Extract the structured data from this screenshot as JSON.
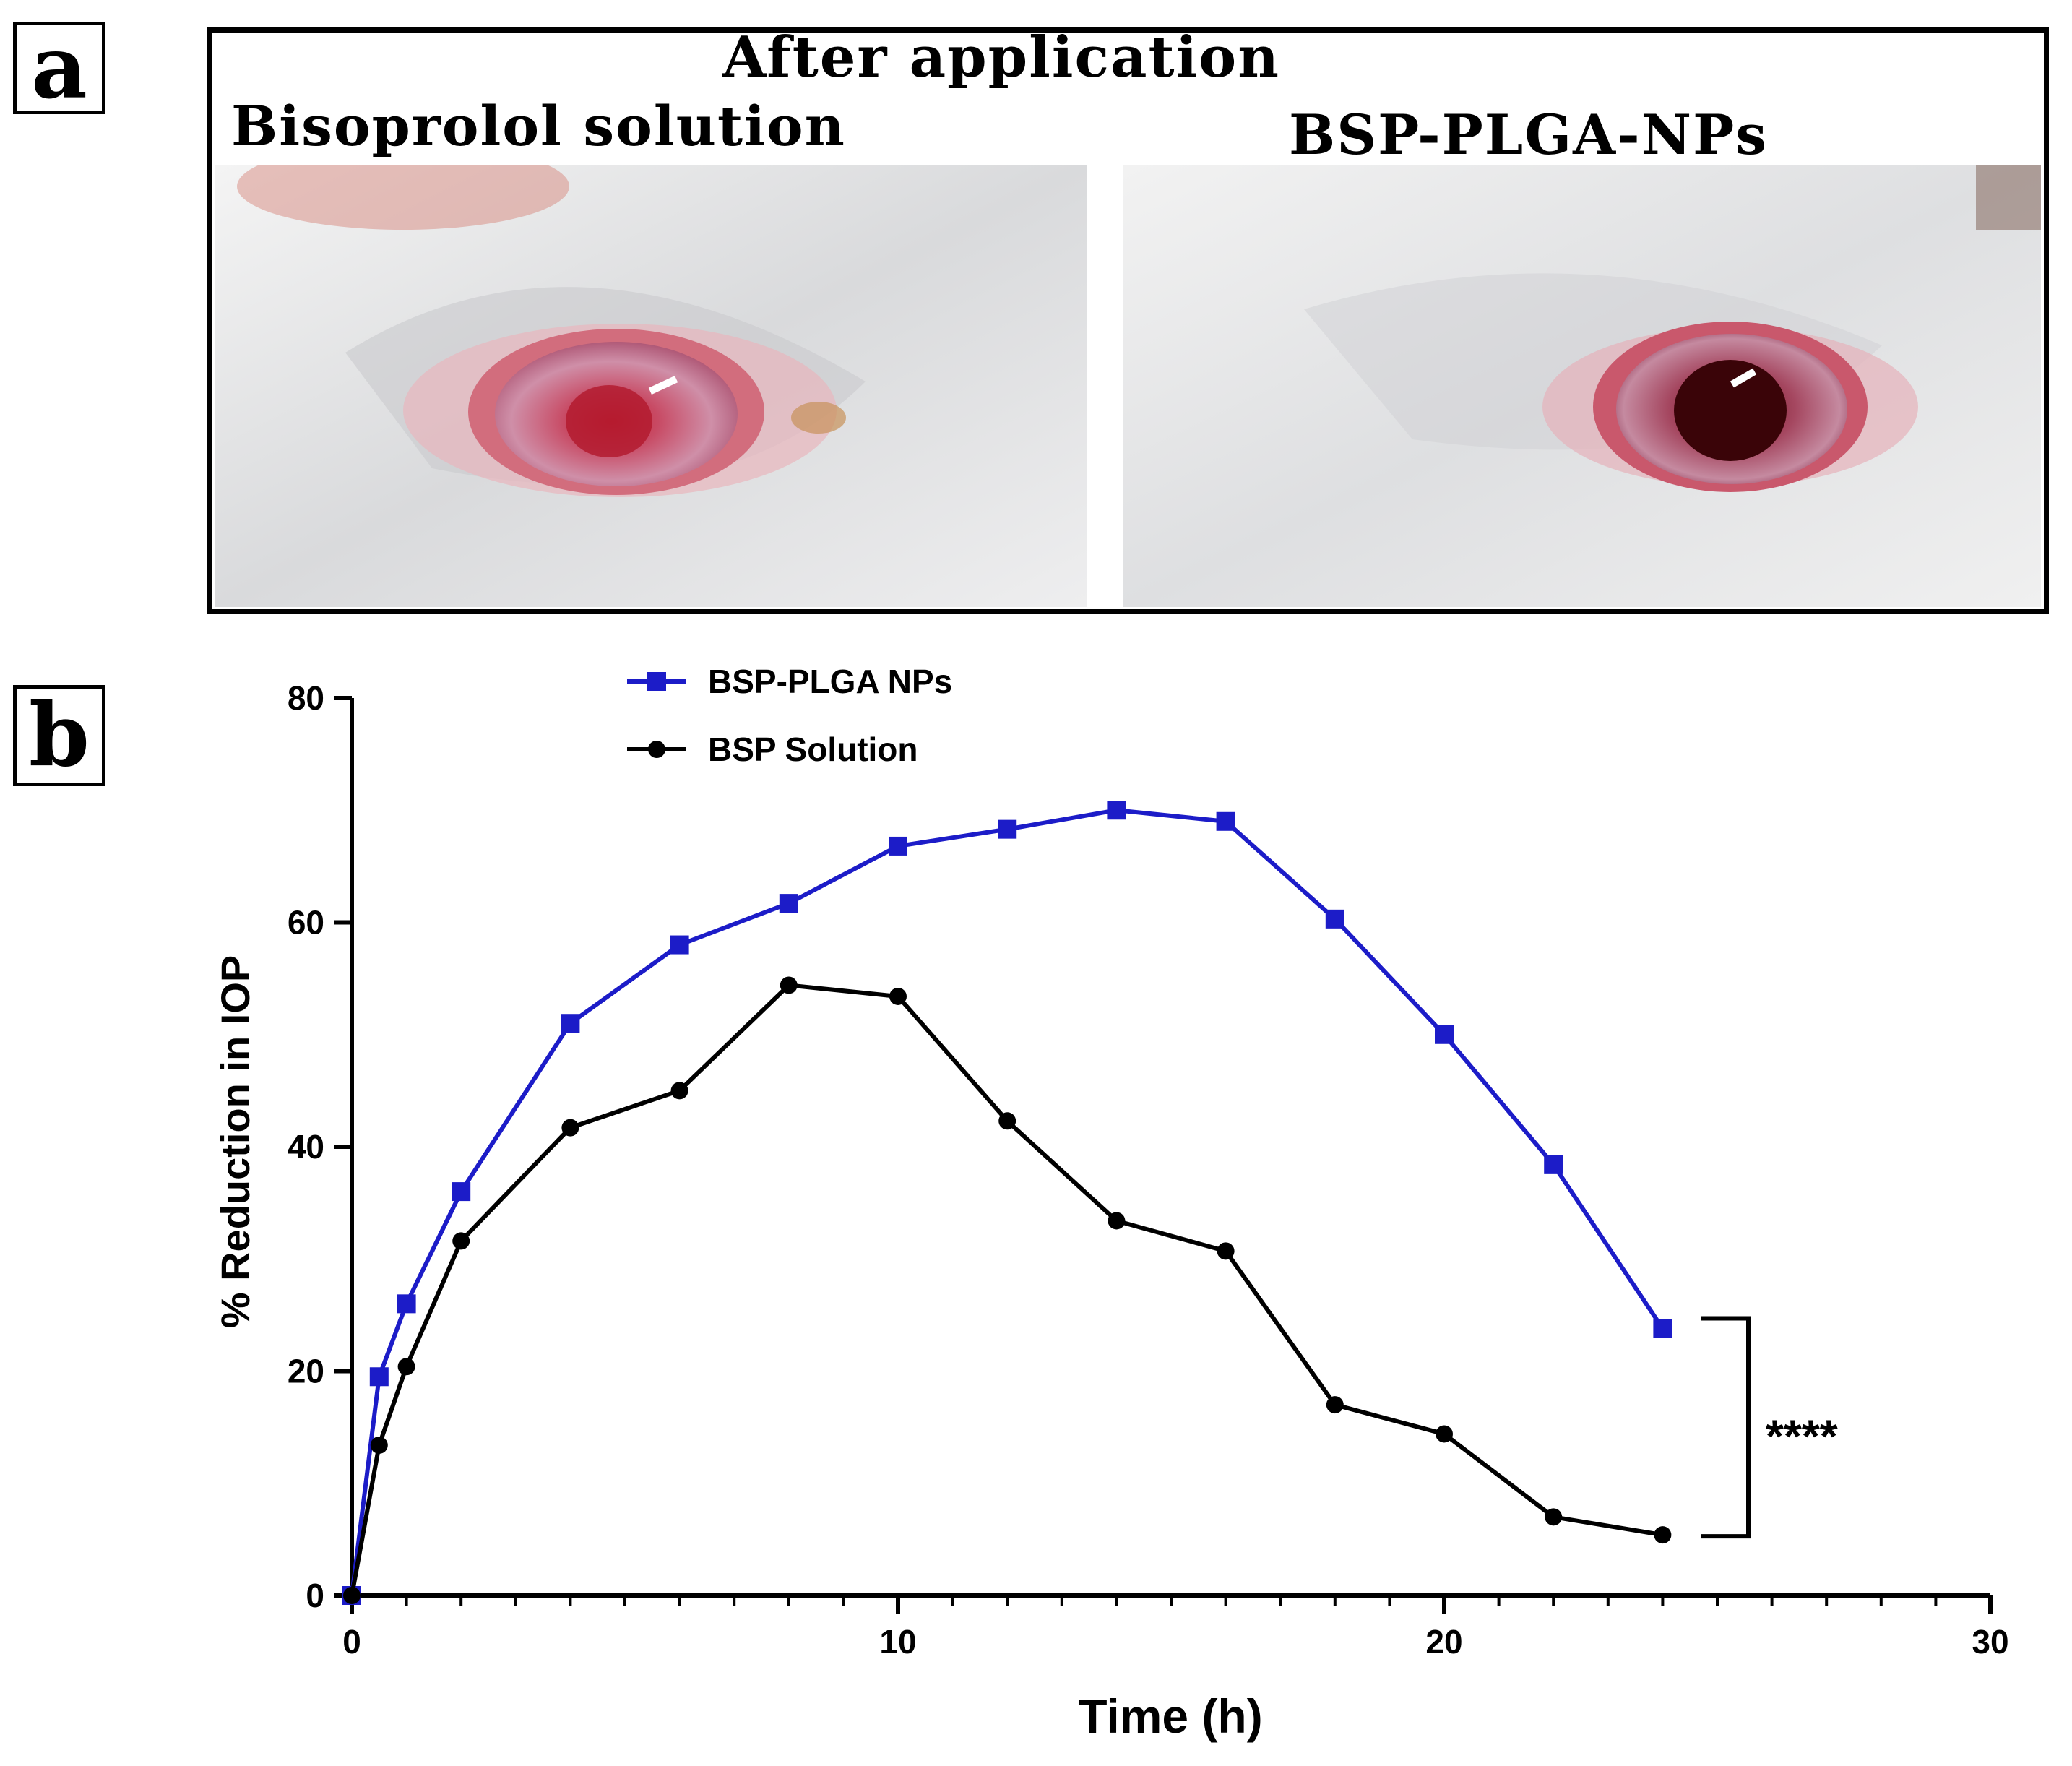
{
  "panel_labels": {
    "a": "a",
    "b": "b"
  },
  "panel_a": {
    "heading": "After application",
    "left_caption": "Bisoprolol solution",
    "right_caption": "BSP-PLGA-NPs"
  },
  "chart_data": {
    "type": "line",
    "title": "",
    "xlabel": "Time (h)",
    "ylabel": "% Reduction in IOP",
    "xlim": [
      0,
      30
    ],
    "ylim": [
      0,
      80
    ],
    "x_ticks": [
      0,
      10,
      20,
      30
    ],
    "y_ticks": [
      0,
      20,
      40,
      60,
      80
    ],
    "x_minor_step": 1,
    "x_tick_labels": [
      "0",
      "10",
      "20",
      "30"
    ],
    "y_tick_labels": [
      "0",
      "20",
      "40",
      "60",
      "80"
    ],
    "grid": false,
    "legend_position": "top-left",
    "series": [
      {
        "name": "BSP-PLGA NPs",
        "color": "#1c1cc8",
        "marker": "square",
        "x": [
          0,
          0.5,
          1,
          2,
          4,
          6,
          8,
          10,
          12,
          14,
          16,
          18,
          20,
          22,
          24
        ],
        "values": [
          0,
          19.5,
          26,
          36,
          51,
          58,
          61.7,
          66.8,
          68.3,
          70,
          69,
          60.3,
          50,
          38.4,
          23.8
        ]
      },
      {
        "name": "BSP Solution",
        "color": "#000000",
        "marker": "circle",
        "x": [
          0,
          0.5,
          1,
          2,
          4,
          6,
          8,
          10,
          12,
          14,
          16,
          18,
          20,
          22,
          24
        ],
        "values": [
          0,
          13.4,
          20.4,
          31.6,
          41.7,
          45,
          54.4,
          53.4,
          42.3,
          33.4,
          30.7,
          17,
          14.4,
          7,
          5.4
        ]
      }
    ],
    "annotation": {
      "text": "****",
      "between_series_at_x": 24
    }
  }
}
